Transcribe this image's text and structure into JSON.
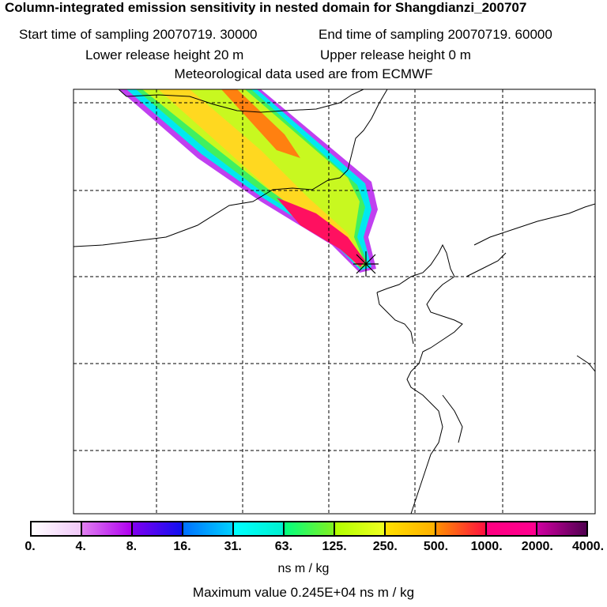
{
  "title": "Column-integrated emission sensitivity in nested domain for Shangdianzi_200707",
  "start_label": "Start time of sampling 20070719. 30000",
  "end_label": "End time of sampling 20070719. 60000",
  "lower_label": "Lower release height   20 m",
  "upper_label": "Upper release height    0 m",
  "met_label": "Meteorological data used are from ECMWF",
  "colorbar": {
    "ticks": [
      "0.",
      "4.",
      "8.",
      "16.",
      "31.",
      "63.",
      "125.",
      "250.",
      "500.",
      "1000.",
      "2000.",
      "4000."
    ],
    "segments": [
      [
        "#ffffff",
        "#f0c8f8"
      ],
      [
        "#e080f0",
        "#b000f0"
      ],
      [
        "#8000f0",
        "#1010f0"
      ],
      [
        "#0070ff",
        "#00d0ff"
      ],
      [
        "#00ffff",
        "#00f0d0"
      ],
      [
        "#00ff80",
        "#80f020"
      ],
      [
        "#b0ff00",
        "#f0ff20"
      ],
      [
        "#ffe000",
        "#ffb000"
      ],
      [
        "#ff9000",
        "#ff1040"
      ],
      [
        "#ff0080",
        "#ff0090"
      ],
      [
        "#d000a0",
        "#500050"
      ]
    ],
    "unit": "ns m / kg"
  },
  "max_value": "Maximum value  0.245E+04 ns m / kg"
}
